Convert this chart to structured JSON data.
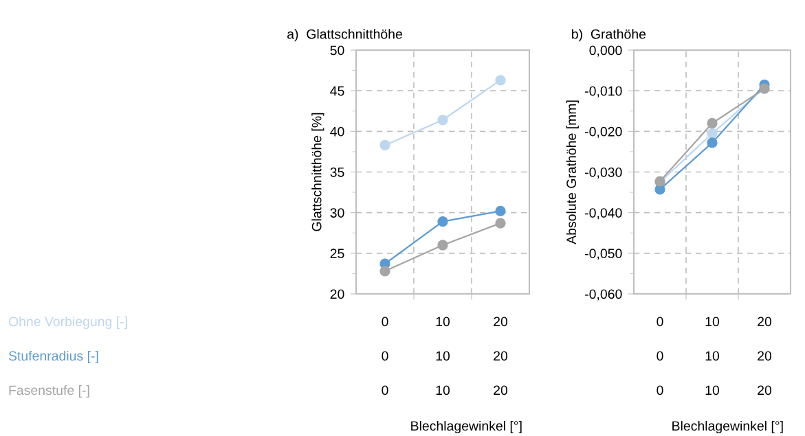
{
  "chart_data": [
    {
      "type": "line",
      "title": "a)  Glattschnitthöhe",
      "xlabel": "Blechlagewinkel [°]",
      "ylabel": "Glattschnitthöhe [%]",
      "categories": [
        "0",
        "10",
        "20"
      ],
      "ylim": [
        20,
        50
      ],
      "yticks": [
        20,
        {
          "value": 22.5,
          "label": null
        },
        25,
        {
          "value": 27.5,
          "label": null
        },
        30,
        {
          "value": 32.5,
          "label": null
        },
        35,
        {
          "value": 37.5,
          "label": null
        },
        40,
        {
          "value": 42.5,
          "label": null
        },
        45,
        {
          "value": 47.5,
          "label": null
        },
        50
      ],
      "grid": true,
      "marker": "circle",
      "line_style": "solid",
      "legend": "left",
      "series": [
        {
          "name": "Ohne Vorbiegung [-]",
          "color": "#bdd7ee",
          "values": [
            38.3,
            41.4,
            46.3
          ]
        },
        {
          "name": "Stufenradius [-]",
          "color": "#5b9bd5",
          "values": [
            23.7,
            28.9,
            30.2
          ]
        },
        {
          "name": "Fasenstufe [-]",
          "color": "#a5a5a5",
          "values": [
            22.8,
            26.0,
            28.7
          ]
        }
      ]
    },
    {
      "type": "line",
      "title": "b)  Grathöhe",
      "xlabel": "Blechlagewinkel [°]",
      "ylabel": "Absolute Grathöhe [mm]",
      "categories": [
        "0",
        "10",
        "20"
      ],
      "ylim": [
        -0.06,
        0
      ],
      "yticks": [
        {
          "value": -0.06,
          "label": "-0,060"
        },
        {
          "value": -0.055,
          "label": null
        },
        {
          "value": -0.05,
          "label": "-0,050"
        },
        {
          "value": -0.045,
          "label": null
        },
        {
          "value": -0.04,
          "label": "-0,040"
        },
        {
          "value": -0.035,
          "label": null
        },
        {
          "value": -0.03,
          "label": "-0,030"
        },
        {
          "value": -0.025,
          "label": null
        },
        {
          "value": -0.02,
          "label": "-0,020"
        },
        {
          "value": -0.015,
          "label": null
        },
        {
          "value": -0.01,
          "label": "-0,010"
        },
        {
          "value": -0.005,
          "label": null
        },
        {
          "value": 0,
          "label": "0,000"
        }
      ],
      "grid": true,
      "marker": "circle",
      "line_style": "solid",
      "series": [
        {
          "color": "#bdd7ee",
          "values": [
            -0.0325,
            -0.0205,
            -0.0093
          ]
        },
        {
          "color": "#5b9bd5",
          "values": [
            -0.0343,
            -0.0228,
            -0.0085
          ]
        },
        {
          "color": "#a5a5a5",
          "values": [
            -0.0323,
            -0.018,
            -0.0095
          ]
        }
      ]
    }
  ]
}
